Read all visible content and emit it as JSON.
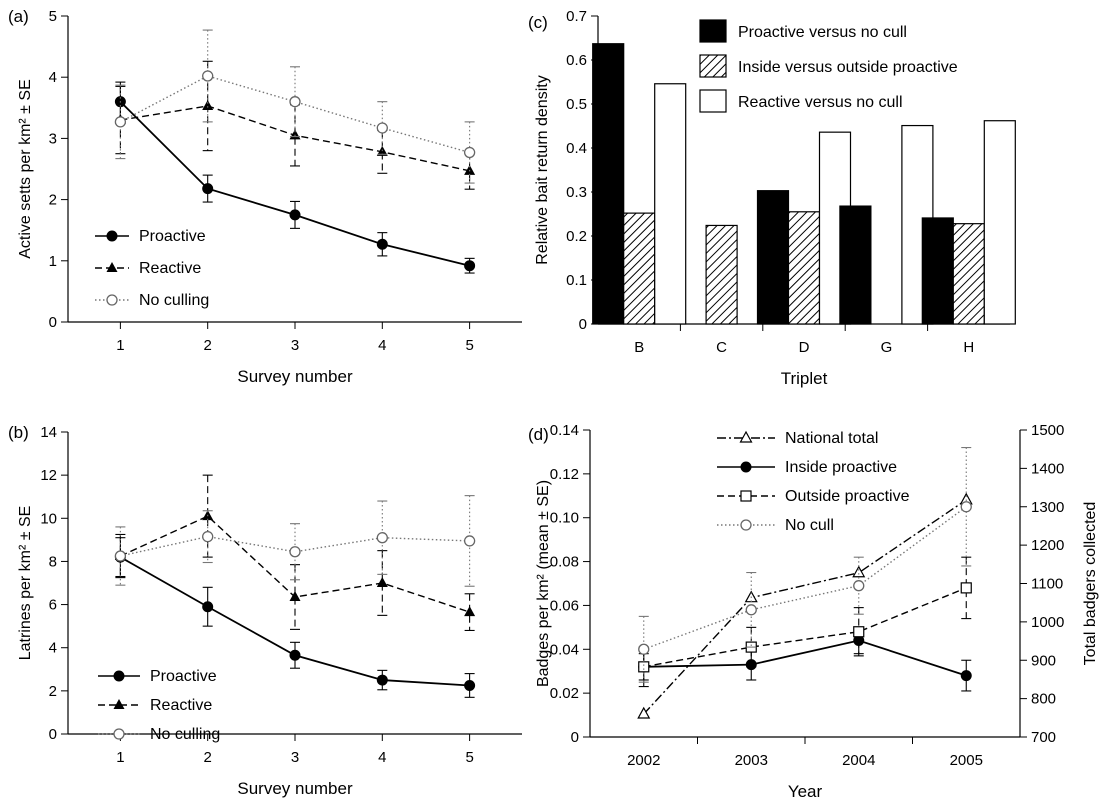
{
  "chart_data": [
    {
      "panel": "(a)",
      "type": "line",
      "xlabel": "Survey number",
      "ylabel": "Active setts  per km² ± SE",
      "x": [
        1,
        2,
        3,
        4,
        5
      ],
      "xlim": [
        0.4,
        5.6
      ],
      "ylim": [
        0,
        5
      ],
      "yticks": [
        0,
        1,
        2,
        3,
        4,
        5
      ],
      "legend_position": "bottom-left",
      "series": [
        {
          "name": "Proactive",
          "style": "solid",
          "marker": "circle-filled",
          "values": [
            3.6,
            2.18,
            1.75,
            1.27,
            0.92
          ],
          "errors": [
            0.32,
            0.22,
            0.22,
            0.19,
            0.12
          ]
        },
        {
          "name": "Reactive",
          "style": "dashed",
          "marker": "triangle-filled",
          "values": [
            3.3,
            3.53,
            3.05,
            2.78,
            2.47
          ],
          "errors": [
            0.55,
            0.73,
            0.5,
            0.35,
            0.3
          ]
        },
        {
          "name": "No culling",
          "style": "dotted",
          "marker": "circle-open",
          "values": [
            3.27,
            4.02,
            3.6,
            3.17,
            2.77
          ],
          "errors": [
            0.6,
            0.75,
            0.57,
            0.43,
            0.5
          ]
        }
      ]
    },
    {
      "panel": "(b)",
      "type": "line",
      "xlabel": "Survey number",
      "ylabel": "Latrines per km² ± SE",
      "x": [
        1,
        2,
        3,
        4,
        5
      ],
      "xlim": [
        0.4,
        5.6
      ],
      "ylim": [
        0,
        14
      ],
      "yticks": [
        0,
        2,
        4,
        6,
        8,
        10,
        12,
        14
      ],
      "legend_position": "bottom-left",
      "series": [
        {
          "name": "Proactive",
          "style": "solid",
          "marker": "circle-filled",
          "values": [
            8.2,
            5.9,
            3.65,
            2.5,
            2.25
          ],
          "errors": [
            0.9,
            0.9,
            0.6,
            0.45,
            0.55
          ]
        },
        {
          "name": "Reactive",
          "style": "dashed",
          "marker": "triangle-filled",
          "values": [
            8.25,
            10.1,
            6.35,
            7.0,
            5.65
          ],
          "errors": [
            1.0,
            1.9,
            1.5,
            1.5,
            0.85
          ]
        },
        {
          "name": "No culling",
          "style": "dotted",
          "marker": "circle-open",
          "values": [
            8.25,
            9.15,
            8.45,
            9.1,
            8.95
          ],
          "errors": [
            1.35,
            1.2,
            1.3,
            1.7,
            2.1
          ]
        }
      ]
    },
    {
      "panel": "(c)",
      "type": "bar",
      "xlabel": "Triplet",
      "ylabel": "Relative bait return density",
      "categories": [
        "B",
        "C",
        "D",
        "G",
        "H"
      ],
      "ylim": [
        0,
        0.7
      ],
      "yticks": [
        0,
        0.1,
        0.2,
        0.3,
        0.4,
        0.5,
        0.6,
        0.7
      ],
      "legend_position": "top-right",
      "series": [
        {
          "name": "Proactive versus no cull",
          "fill": "#000000",
          "values": [
            0.637,
            0,
            0.303,
            0.268,
            0.241
          ]
        },
        {
          "name": "Inside versus outside proactive",
          "fill": "hatch",
          "values": [
            0.252,
            0.224,
            0.255,
            0,
            0.228
          ]
        },
        {
          "name": "Reactive versus no cull",
          "fill": "#ffffff",
          "values": [
            0.546,
            0,
            0.436,
            0.451,
            0.462
          ]
        }
      ]
    },
    {
      "panel": "(d)",
      "type": "line",
      "xlabel": "Year",
      "ylabel": "Badges per km²  (mean ± SE)",
      "ylabel_right": "Total badgers collected",
      "categories": [
        "2002",
        "2003",
        "2004",
        "2005"
      ],
      "ylim": [
        0,
        0.14
      ],
      "yticks": [
        0,
        0.02,
        0.04,
        0.06,
        0.08,
        0.1,
        0.12,
        0.14
      ],
      "ylim_right": [
        700,
        1500
      ],
      "yticks_right": [
        700,
        800,
        900,
        1000,
        1100,
        1200,
        1300,
        1400,
        1500
      ],
      "legend_position": "top-center",
      "series": [
        {
          "name": "National total",
          "style": "dashdot",
          "marker": "triangle-open",
          "axis": "right",
          "values": [
            760,
            1063,
            1128,
            1318
          ],
          "errors": [
            0,
            0,
            0,
            0
          ]
        },
        {
          "name": "Inside proactive",
          "style": "solid",
          "marker": "circle-filled",
          "axis": "left",
          "values": [
            0.032,
            0.033,
            0.044,
            0.028
          ],
          "errors": [
            0.009,
            0.007,
            0.006,
            0.007
          ]
        },
        {
          "name": "Outside proactive",
          "style": "dashed",
          "marker": "square-open",
          "axis": "left",
          "values": [
            0.032,
            0.041,
            0.048,
            0.068
          ],
          "errors": [
            0.006,
            0.009,
            0.011,
            0.014
          ]
        },
        {
          "name": "No cull",
          "style": "dotted",
          "marker": "circle-open",
          "axis": "left",
          "values": [
            0.04,
            0.058,
            0.069,
            0.105
          ],
          "errors": [
            0.015,
            0.017,
            0.013,
            0.027
          ]
        }
      ]
    }
  ]
}
